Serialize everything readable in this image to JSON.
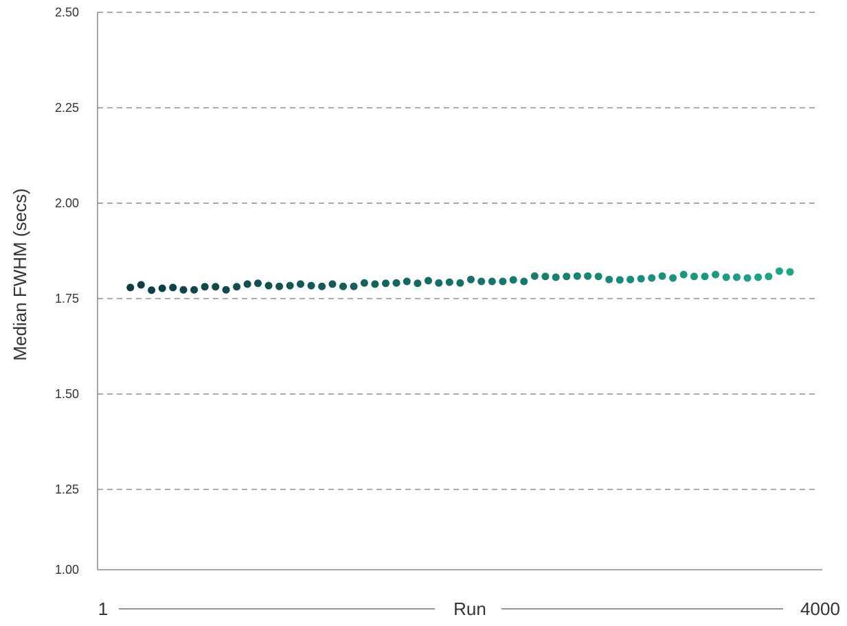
{
  "chart_data": {
    "type": "scatter",
    "title": "",
    "xlabel": "Run",
    "ylabel": "Median FWHM (secs)",
    "xlim": [
      1,
      4000
    ],
    "x_tick_labels": [
      "1",
      "4000"
    ],
    "ylim": [
      1.0,
      2.5
    ],
    "y_ticks": [
      1.0,
      1.25,
      1.5,
      1.75,
      2.0,
      2.25,
      2.5
    ],
    "y_tick_labels": [
      "1.00",
      "1.25",
      "1.50",
      "1.75",
      "2.00",
      "2.25",
      "2.50"
    ],
    "grid": "horizontal dashed",
    "colors": {
      "start": "#0d3b45",
      "end": "#1fa58a",
      "grid": "#555555",
      "axis": "#888888"
    },
    "x": [
      182,
      241,
      299,
      358,
      417,
      475,
      534,
      593,
      652,
      710,
      769,
      828,
      886,
      945,
      1004,
      1063,
      1121,
      1180,
      1239,
      1297,
      1356,
      1415,
      1473,
      1532,
      1591,
      1650,
      1708,
      1767,
      1826,
      1884,
      1943,
      2002,
      2061,
      2119,
      2178,
      2237,
      2295,
      2354,
      2413,
      2472,
      2530,
      2589,
      2648,
      2706,
      2765,
      2824,
      2883,
      2941,
      3000,
      3059,
      3117,
      3176,
      3235,
      3293,
      3352,
      3411,
      3470,
      3528,
      3587,
      3646,
      3704,
      3763,
      3822
    ],
    "y": [
      1.779,
      1.786,
      1.772,
      1.777,
      1.779,
      1.773,
      1.773,
      1.781,
      1.781,
      1.773,
      1.781,
      1.788,
      1.79,
      1.784,
      1.782,
      1.784,
      1.788,
      1.784,
      1.782,
      1.788,
      1.782,
      1.782,
      1.791,
      1.788,
      1.79,
      1.791,
      1.795,
      1.79,
      1.797,
      1.791,
      1.793,
      1.791,
      1.8,
      1.795,
      1.795,
      1.795,
      1.799,
      1.795,
      1.809,
      1.808,
      1.806,
      1.808,
      1.809,
      1.809,
      1.808,
      1.8,
      1.799,
      1.8,
      1.802,
      1.804,
      1.809,
      1.804,
      1.813,
      1.808,
      1.808,
      1.813,
      1.806,
      1.806,
      1.804,
      1.806,
      1.808,
      1.822,
      1.82
    ]
  }
}
